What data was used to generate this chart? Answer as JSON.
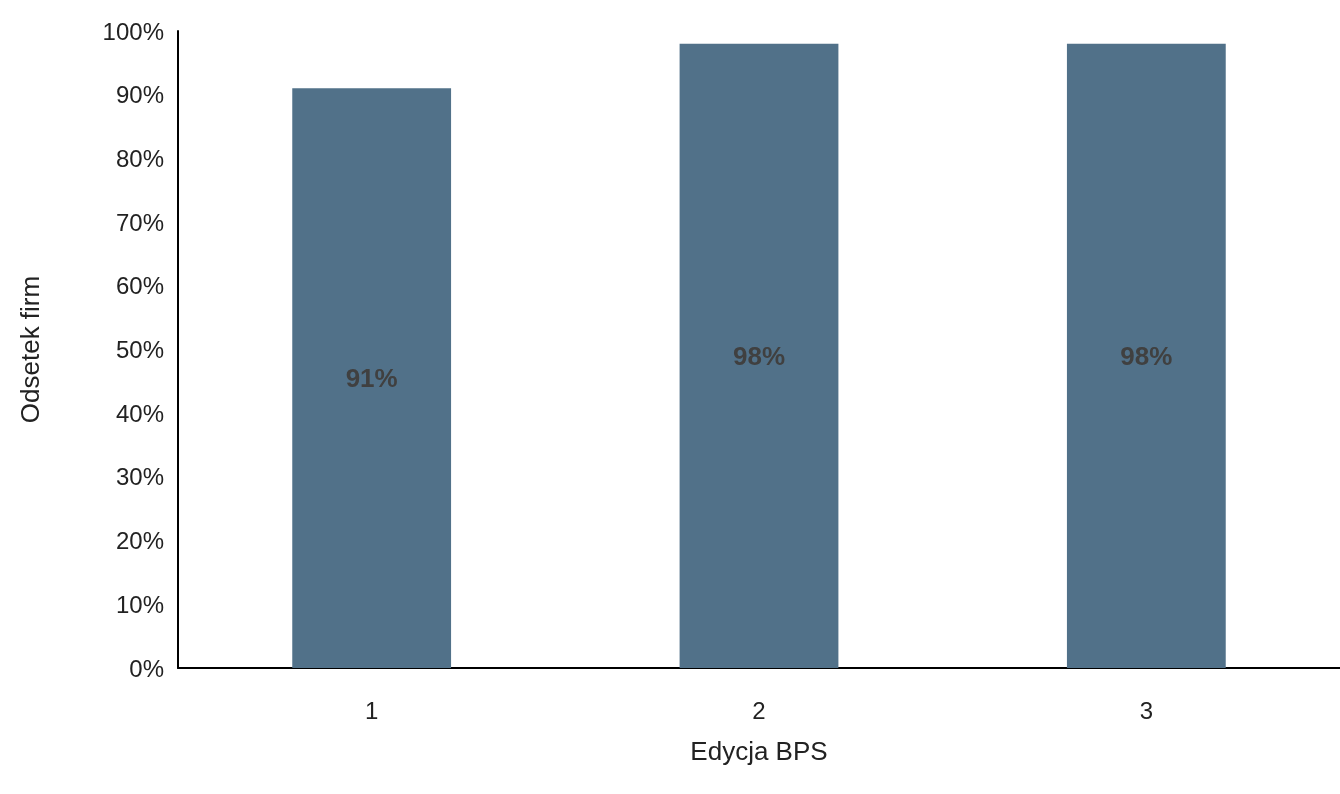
{
  "chart_data": {
    "type": "bar",
    "xlabel": "Edycja BPS",
    "ylabel": "Odsetek firm",
    "categories": [
      "1",
      "2",
      "3"
    ],
    "values": [
      91,
      98,
      98
    ],
    "value_labels": [
      "91%",
      "98%",
      "98%"
    ],
    "color": "#517189",
    "ylim": [
      0,
      100
    ],
    "yticks": [
      {
        "value": 0,
        "label": "0%"
      },
      {
        "value": 10,
        "label": "10%"
      },
      {
        "value": 20,
        "label": "20%"
      },
      {
        "value": 30,
        "label": "30%"
      },
      {
        "value": 40,
        "label": "40%"
      },
      {
        "value": 50,
        "label": "50%"
      },
      {
        "value": 60,
        "label": "60%"
      },
      {
        "value": 70,
        "label": "70%"
      },
      {
        "value": 80,
        "label": "80%"
      },
      {
        "value": 90,
        "label": "90%"
      },
      {
        "value": 100,
        "label": "100%"
      }
    ],
    "grid": false
  }
}
